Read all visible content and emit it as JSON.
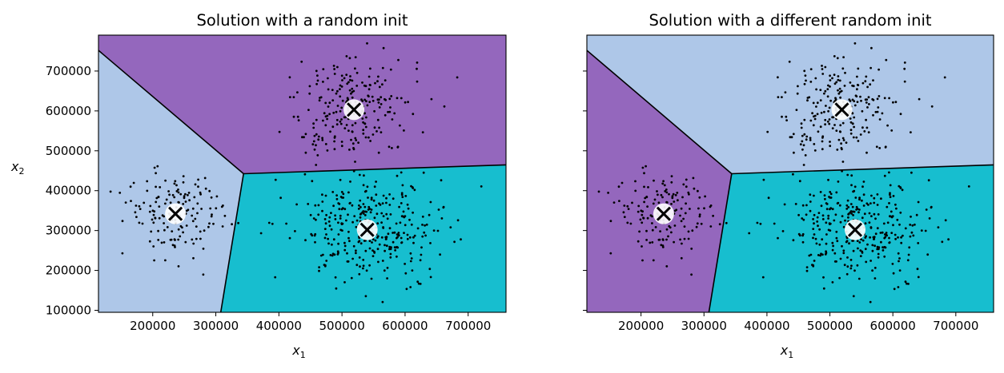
{
  "chart_data": [
    {
      "type": "scatter",
      "title": "Solution with a random init",
      "xlabel": "x",
      "xlabel_sub": "1",
      "ylabel": "x",
      "ylabel_sub": "2",
      "xlim": [
        114000,
        760000
      ],
      "ylim": [
        95000,
        790000
      ],
      "x_ticks": [
        200000,
        300000,
        400000,
        500000,
        600000,
        700000
      ],
      "x_tick_labels": [
        "200000",
        "300000",
        "400000",
        "500000",
        "600000",
        "700000"
      ],
      "y_ticks": [
        100000,
        200000,
        300000,
        400000,
        500000,
        600000,
        700000
      ],
      "y_tick_labels": [
        "100000",
        "200000",
        "300000",
        "400000",
        "500000",
        "600000",
        "700000"
      ],
      "show_y_tick_labels": true,
      "regions": [
        {
          "name": "region-top",
          "color": "#9467bd"
        },
        {
          "name": "region-left",
          "color": "#aec7e8"
        },
        {
          "name": "region-bottom-right",
          "color": "#17becf"
        }
      ],
      "centroids": [
        {
          "x": 236000,
          "y": 342000
        },
        {
          "x": 519000,
          "y": 603000
        },
        {
          "x": 540000,
          "y": 302000
        }
      ]
    },
    {
      "type": "scatter",
      "title": "Solution with a different random init",
      "xlabel": "x",
      "xlabel_sub": "1",
      "ylabel": "",
      "ylabel_sub": "",
      "xlim": [
        114000,
        760000
      ],
      "ylim": [
        95000,
        790000
      ],
      "x_ticks": [
        200000,
        300000,
        400000,
        500000,
        600000,
        700000
      ],
      "x_tick_labels": [
        "200000",
        "300000",
        "400000",
        "500000",
        "600000",
        "700000"
      ],
      "y_ticks": [
        100000,
        200000,
        300000,
        400000,
        500000,
        600000,
        700000
      ],
      "y_tick_labels": [],
      "show_y_tick_labels": false,
      "regions": [
        {
          "name": "region-top",
          "color": "#aec7e8"
        },
        {
          "name": "region-left",
          "color": "#9467bd"
        },
        {
          "name": "region-bottom-right",
          "color": "#17becf"
        }
      ],
      "centroids": [
        {
          "x": 236000,
          "y": 342000
        },
        {
          "x": 519000,
          "y": 603000
        },
        {
          "x": 540000,
          "y": 302000
        }
      ]
    }
  ]
}
